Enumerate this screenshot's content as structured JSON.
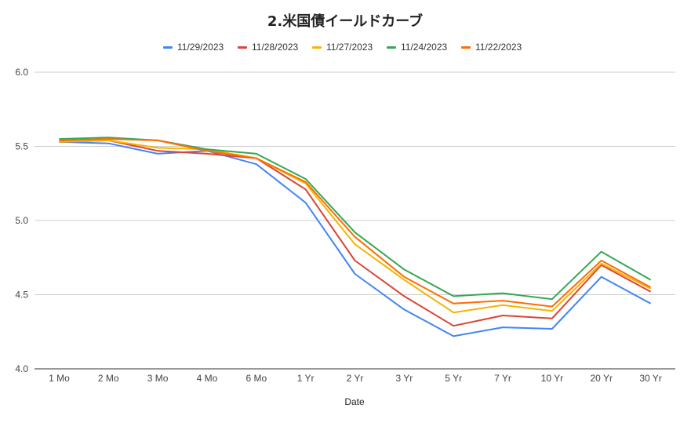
{
  "chart_data": {
    "type": "line",
    "title": "2.米国債イールドカーブ",
    "xlabel": "Date",
    "ylabel": "",
    "ylim": [
      4.0,
      6.0
    ],
    "yticks": [
      "4.0",
      "4.5",
      "5.0",
      "5.5",
      "6.0"
    ],
    "grid": true,
    "legend_position": "top",
    "categories": [
      "1 Mo",
      "2 Mo",
      "3 Mo",
      "4 Mo",
      "6 Mo",
      "1 Yr",
      "2 Yr",
      "3 Yr",
      "5 Yr",
      "7 Yr",
      "10 Yr",
      "20 Yr",
      "30 Yr"
    ],
    "series": [
      {
        "name": "11/29/2023",
        "color": "#4285F4",
        "values": [
          5.53,
          5.52,
          5.45,
          5.47,
          5.38,
          5.12,
          4.64,
          4.4,
          4.22,
          4.28,
          4.27,
          4.62,
          4.44
        ]
      },
      {
        "name": "11/28/2023",
        "color": "#DB4437",
        "values": [
          5.53,
          5.54,
          5.47,
          5.45,
          5.42,
          5.21,
          4.73,
          4.49,
          4.29,
          4.36,
          4.34,
          4.7,
          4.52
        ]
      },
      {
        "name": "11/27/2023",
        "color": "#F4B400",
        "values": [
          5.53,
          5.54,
          5.49,
          5.48,
          5.42,
          5.25,
          4.84,
          4.6,
          4.38,
          4.43,
          4.39,
          4.71,
          4.54
        ]
      },
      {
        "name": "11/24/2023",
        "color": "#34A853",
        "values": [
          5.55,
          5.56,
          5.54,
          5.48,
          5.45,
          5.28,
          4.92,
          4.67,
          4.49,
          4.51,
          4.47,
          4.79,
          4.6
        ]
      },
      {
        "name": "11/22/2023",
        "color": "#FF6D00",
        "values": [
          5.54,
          5.55,
          5.54,
          5.47,
          5.42,
          5.26,
          4.89,
          4.62,
          4.44,
          4.46,
          4.42,
          4.73,
          4.55
        ]
      }
    ]
  }
}
